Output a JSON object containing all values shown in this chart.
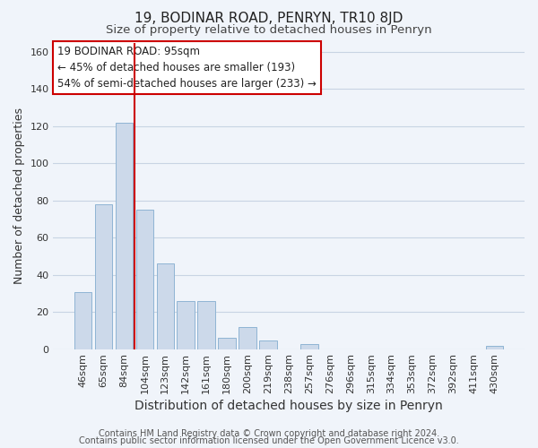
{
  "title": "19, BODINAR ROAD, PENRYN, TR10 8JD",
  "subtitle": "Size of property relative to detached houses in Penryn",
  "xlabel": "Distribution of detached houses by size in Penryn",
  "ylabel": "Number of detached properties",
  "bar_labels": [
    "46sqm",
    "65sqm",
    "84sqm",
    "104sqm",
    "123sqm",
    "142sqm",
    "161sqm",
    "180sqm",
    "200sqm",
    "219sqm",
    "238sqm",
    "257sqm",
    "276sqm",
    "296sqm",
    "315sqm",
    "334sqm",
    "353sqm",
    "372sqm",
    "392sqm",
    "411sqm",
    "430sqm"
  ],
  "bar_values": [
    31,
    78,
    122,
    75,
    46,
    26,
    26,
    6,
    12,
    5,
    0,
    3,
    0,
    0,
    0,
    0,
    0,
    0,
    0,
    0,
    2
  ],
  "bar_color": "#ccd9ea",
  "bar_edge_color": "#8fb4d4",
  "vline_color": "#cc0000",
  "annotation_box_text": "19 BODINAR ROAD: 95sqm\n← 45% of detached houses are smaller (193)\n54% of semi-detached houses are larger (233) →",
  "ylim": [
    0,
    165
  ],
  "yticks": [
    0,
    20,
    40,
    60,
    80,
    100,
    120,
    140,
    160
  ],
  "footer_line1": "Contains HM Land Registry data © Crown copyright and database right 2024.",
  "footer_line2": "Contains public sector information licensed under the Open Government Licence v3.0.",
  "background_color": "#f0f4fa",
  "grid_color": "#c8d4e3",
  "title_fontsize": 11,
  "subtitle_fontsize": 9.5,
  "xlabel_fontsize": 10,
  "ylabel_fontsize": 9,
  "tick_fontsize": 8,
  "annotation_fontsize": 8.5,
  "footer_fontsize": 7
}
